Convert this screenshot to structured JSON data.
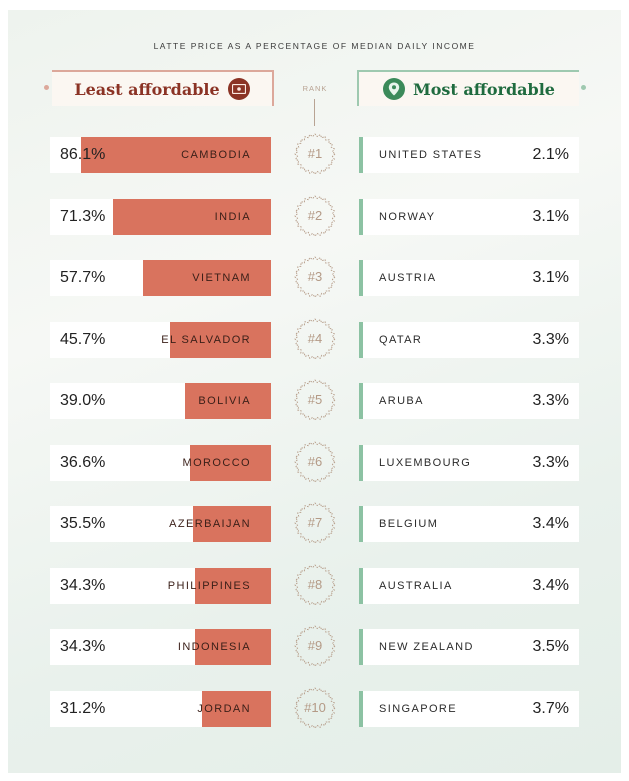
{
  "subtitle": "LATTE PRICE AS A PERCENTAGE OF MEDIAN DAILY INCOME",
  "headers": {
    "least": "Least affordable",
    "most": "Most affordable",
    "rank": "RANK",
    "least_icon": "money-bill-icon",
    "most_icon": "location-pin-icon"
  },
  "colors": {
    "least_bar": "#d9735e",
    "least_accent": "#8b3325",
    "most_accent": "#1f6b3f",
    "most_bar": "#8cc2a3",
    "rank": "#b49a86"
  },
  "chart_data": {
    "type": "bar",
    "title": "",
    "subtitle": "LATTE PRICE AS A PERCENTAGE OF MEDIAN DAILY INCOME",
    "least_affordable": [
      {
        "rank": "#1",
        "country": "CAMBODIA",
        "value": 86.1,
        "label": "86.1%"
      },
      {
        "rank": "#2",
        "country": "INDIA",
        "value": 71.3,
        "label": "71.3%"
      },
      {
        "rank": "#3",
        "country": "VIETNAM",
        "value": 57.7,
        "label": "57.7%"
      },
      {
        "rank": "#4",
        "country": "EL SALVADOR",
        "value": 45.7,
        "label": "45.7%"
      },
      {
        "rank": "#5",
        "country": "BOLIVIA",
        "value": 39.0,
        "label": "39.0%"
      },
      {
        "rank": "#6",
        "country": "MOROCCO",
        "value": 36.6,
        "label": "36.6%"
      },
      {
        "rank": "#7",
        "country": "AZERBAIJAN",
        "value": 35.5,
        "label": "35.5%"
      },
      {
        "rank": "#8",
        "country": "PHILIPPINES",
        "value": 34.3,
        "label": "34.3%"
      },
      {
        "rank": "#9",
        "country": "INDONESIA",
        "value": 34.3,
        "label": "34.3%"
      },
      {
        "rank": "#10",
        "country": "JORDAN",
        "value": 31.2,
        "label": "31.2%"
      }
    ],
    "most_affordable": [
      {
        "rank": "#1",
        "country": "UNITED STATES",
        "value": 2.1,
        "label": "2.1%"
      },
      {
        "rank": "#2",
        "country": "NORWAY",
        "value": 3.1,
        "label": "3.1%"
      },
      {
        "rank": "#3",
        "country": "AUSTRIA",
        "value": 3.1,
        "label": "3.1%"
      },
      {
        "rank": "#4",
        "country": "QATAR",
        "value": 3.3,
        "label": "3.3%"
      },
      {
        "rank": "#5",
        "country": "ARUBA",
        "value": 3.3,
        "label": "3.3%"
      },
      {
        "rank": "#6",
        "country": "LUXEMBOURG",
        "value": 3.3,
        "label": "3.3%"
      },
      {
        "rank": "#7",
        "country": "BELGIUM",
        "value": 3.4,
        "label": "3.4%"
      },
      {
        "rank": "#8",
        "country": "AUSTRALIA",
        "value": 3.4,
        "label": "3.4%"
      },
      {
        "rank": "#9",
        "country": "NEW ZEALAND",
        "value": 3.5,
        "label": "3.5%"
      },
      {
        "rank": "#10",
        "country": "SINGAPORE",
        "value": 3.7,
        "label": "3.7%"
      }
    ]
  }
}
